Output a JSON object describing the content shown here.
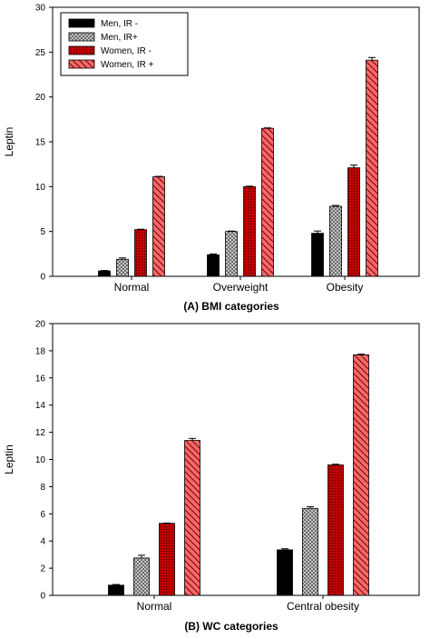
{
  "chart_data": [
    {
      "type": "bar",
      "title": "(A) BMI categories",
      "xlabel": "",
      "ylabel": "Leptin",
      "ylim": [
        0,
        30
      ],
      "yticks": [
        0,
        5,
        10,
        15,
        20,
        25,
        30
      ],
      "categories": [
        "Normal",
        "Overweight",
        "Obesity"
      ],
      "legend_position": "top-left",
      "series": [
        {
          "name": "Men, IR -",
          "values": [
            0.6,
            2.4,
            4.8
          ],
          "errors": [
            0.05,
            0.1,
            0.25
          ],
          "color": "#000000",
          "pattern": "solid"
        },
        {
          "name": "Men, IR+",
          "values": [
            1.9,
            5.0,
            7.8
          ],
          "errors": [
            0.15,
            0.05,
            0.1
          ],
          "color": "#c8c8c8",
          "pattern": "crosshatch"
        },
        {
          "name": "Women, IR -",
          "values": [
            5.2,
            10.0,
            12.1
          ],
          "errors": [
            0.05,
            0.05,
            0.3
          ],
          "color": "#c00000",
          "pattern": "dots"
        },
        {
          "name": "Women, IR +",
          "values": [
            11.1,
            16.5,
            24.1
          ],
          "errors": [
            0.05,
            0.05,
            0.3
          ],
          "color": "#f06060",
          "pattern": "diagonal"
        }
      ]
    },
    {
      "type": "bar",
      "title": "(B) WC categories",
      "xlabel": "",
      "ylabel": "Leptin",
      "ylim": [
        0,
        20
      ],
      "yticks": [
        0,
        2,
        4,
        6,
        8,
        10,
        12,
        14,
        16,
        18,
        20
      ],
      "categories": [
        "Normal",
        "Central obesity"
      ],
      "series": [
        {
          "values": [
            0.75,
            3.35
          ],
          "errors": [
            0.05,
            0.08
          ],
          "color": "#000000",
          "pattern": "solid"
        },
        {
          "values": [
            2.75,
            6.4
          ],
          "errors": [
            0.2,
            0.12
          ],
          "color": "#c8c8c8",
          "pattern": "crosshatch"
        },
        {
          "values": [
            5.3,
            9.6
          ],
          "errors": [
            0.02,
            0.05
          ],
          "color": "#c00000",
          "pattern": "dots"
        },
        {
          "values": [
            11.4,
            17.7
          ],
          "errors": [
            0.15,
            0.05
          ],
          "color": "#f06060",
          "pattern": "diagonal"
        }
      ]
    }
  ]
}
